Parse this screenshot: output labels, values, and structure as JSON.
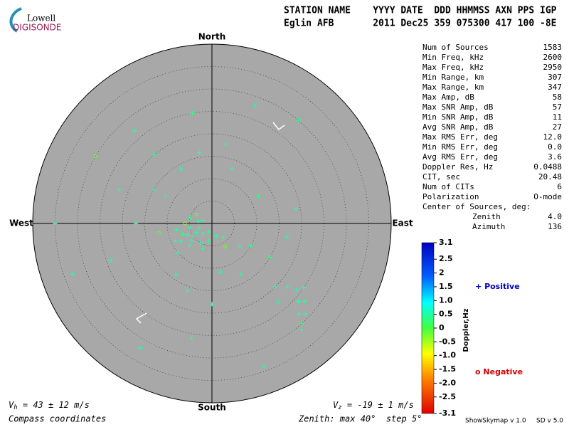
{
  "logo": {
    "top": "Lowell",
    "bottom": "DIGISONDE"
  },
  "header": {
    "line1": "STATION NAME    YYYY DATE  DDD HHMMSS AXN PPS IGP",
    "line2": "Eglin AFB       2011 Dec25 359 075300 417 100 -8E"
  },
  "stats": {
    "rows": [
      [
        "Num of Sources",
        "1583"
      ],
      [
        "Min Freq, kHz",
        "2600"
      ],
      [
        "Max Freq, kHz",
        "2950"
      ],
      [
        "Min Range, km",
        "307"
      ],
      [
        "Max Range, km",
        "347"
      ],
      [
        "Max Amp, dB",
        "58"
      ],
      [
        "Max SNR Amp, dB",
        "57"
      ],
      [
        "Min SNR Amp, dB",
        "11"
      ],
      [
        "Avg SNR Amp, dB",
        "27"
      ],
      [
        "Max RMS Err, deg",
        "12.0"
      ],
      [
        "Min RMS Err, deg",
        "0.0"
      ],
      [
        "Avg RMS Err, deg",
        "3.6"
      ],
      [
        "Doppler Res, Hz",
        "0.0488"
      ],
      [
        "CIT, sec",
        "20.48"
      ],
      [
        "Num of CITs",
        "6"
      ],
      [
        "Polarization",
        "O-mode"
      ]
    ],
    "center": {
      "label": "Center of Sources, deg:",
      "rows": [
        [
          "Zenith",
          "4.0"
        ],
        [
          "Azimuth",
          "136"
        ]
      ]
    }
  },
  "chart_data": {
    "type": "skymap",
    "directions": {
      "north": "North",
      "south": "South",
      "east": "East",
      "west": "West"
    },
    "rlim": [
      0,
      40
    ],
    "rticks": [
      5,
      10,
      15,
      20,
      25,
      30,
      35,
      40
    ],
    "points": {
      "zenith": [
        3,
        4,
        5,
        6,
        2,
        3,
        4,
        5,
        6,
        7,
        8,
        3,
        5,
        6,
        4,
        7,
        2,
        5,
        6,
        8,
        9,
        10,
        3,
        4,
        6,
        8,
        10,
        12,
        14,
        16,
        18,
        13,
        15,
        17,
        12,
        14,
        16,
        18,
        11,
        13,
        15,
        17,
        19,
        12,
        20,
        22,
        24,
        20,
        22,
        24,
        26,
        28,
        30,
        29,
        27,
        31,
        25,
        23,
        25,
        28,
        30,
        35,
        33,
        30,
        27,
        32,
        26,
        34
      ],
      "azimuth": [
        250,
        240,
        235,
        245,
        200,
        280,
        300,
        260,
        230,
        250,
        240,
        220,
        210,
        270,
        190,
        225,
        290,
        285,
        200,
        260,
        245,
        230,
        160,
        140,
        150,
        130,
        120,
        300,
        330,
        350,
        10,
        20,
        300,
        270,
        260,
        215,
        200,
        180,
        170,
        150,
        120,
        100,
        80,
        60,
        320,
        290,
        250,
        135,
        130,
        128,
        132,
        136,
        138,
        134,
        130,
        140,
        125,
        140,
        350,
        20,
        40,
        270,
        250,
        300,
        320,
        210,
        190,
        160
      ],
      "doppler": [
        0.4,
        0.5,
        0.3,
        0.6,
        0.4,
        0.5,
        -0.2,
        0.4,
        0.5,
        0.3,
        0.6,
        0.4,
        0.5,
        -0.3,
        0.4,
        0.5,
        0.6,
        0.4,
        0.3,
        0.5,
        0.4,
        0.6,
        0.5,
        0.4,
        -0.2,
        0.5,
        0.4,
        0.3,
        0.5,
        0.6,
        0.4,
        0.5,
        0.4,
        0.3,
        -0.1,
        0.5,
        0.4,
        0.6,
        0.5,
        0.4,
        0.3,
        0.5,
        0.6,
        0.4,
        0.5,
        0.3,
        0.4,
        0.5,
        0.4,
        0.6,
        0.5,
        0.4,
        0.3,
        0.5,
        0.4,
        0.6,
        0.5,
        0.4,
        0.3,
        0.5,
        0.4,
        0.6,
        0.5,
        -0.2,
        0.4,
        0.5,
        0.3,
        0.4
      ]
    },
    "series": [
      {
        "name": "Positive",
        "marker": "+",
        "color": "#0000c0"
      },
      {
        "name": "Negative",
        "marker": "o",
        "color": "#d00000"
      }
    ],
    "colorbar": {
      "label": "Doppler,Hz",
      "clim": [
        -3.1,
        3.1
      ],
      "ticks": [
        3.1,
        2.5,
        2,
        1.5,
        {
          "value": 1,
          "label": "1.0"
        },
        0.5,
        0,
        -0.5,
        {
          "value": -1,
          "label": "-1.0"
        },
        -1.5,
        {
          "value": -2,
          "label": "-2.0"
        },
        -2.5,
        -3.1
      ]
    },
    "vh": {
      "symbol": "V",
      "sub": "h",
      "text": " = 43 ± 12 m/s"
    },
    "vz": {
      "symbol": "V",
      "sub": "z",
      "text": " = -19 ± 1 m/s"
    },
    "coords": "Compass coordinates",
    "zenith_note": "Zenith: max 40°  step 5°",
    "version": "ShowSkymap v 1.0",
    "sd_version": "SD v 5.0"
  }
}
